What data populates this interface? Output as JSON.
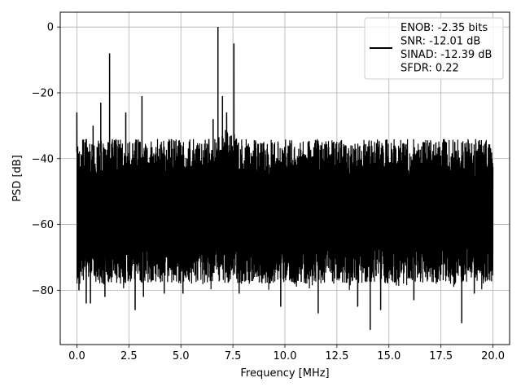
{
  "chart_data": {
    "type": "line",
    "xlabel": "Frequency [MHz]",
    "ylabel": "PSD [dB]",
    "xlim": [
      -0.8,
      20.8
    ],
    "ylim": [
      -96.5,
      4.5
    ],
    "xticks": [
      0.0,
      2.5,
      5.0,
      7.5,
      10.0,
      12.5,
      15.0,
      17.5,
      20.0
    ],
    "xtick_labels": [
      "0.0",
      "2.5",
      "5.0",
      "7.5",
      "10.0",
      "12.5",
      "15.0",
      "17.5",
      "20.0"
    ],
    "yticks": [
      0,
      -20,
      -40,
      -60,
      -80
    ],
    "ytick_labels": [
      "0",
      "−20",
      "−40",
      "−60",
      "−80"
    ],
    "grid": true,
    "line_color": "#000000",
    "legend": {
      "placement": "upper right",
      "lines": [
        "ENOB: -2.35 bits",
        "SNR: -12.01 dB",
        "SINAD: -12.39 dB",
        "SFDR: 0.22"
      ]
    },
    "series": [
      {
        "noise_floor": {
          "x_range": [
            0.0,
            20.0
          ],
          "top_db": -38,
          "bottom_db": -72,
          "mean_db": -52
        },
        "spikes": [
          {
            "x": 0.0,
            "y": -26
          },
          {
            "x": 0.78,
            "y": -30
          },
          {
            "x": 1.15,
            "y": -23
          },
          {
            "x": 1.57,
            "y": -8
          },
          {
            "x": 2.35,
            "y": -26
          },
          {
            "x": 3.13,
            "y": -21
          },
          {
            "x": 6.78,
            "y": 0
          },
          {
            "x": 7.0,
            "y": -21
          },
          {
            "x": 7.55,
            "y": -5
          },
          {
            "x": 7.2,
            "y": -26
          },
          {
            "x": 6.55,
            "y": -28
          }
        ],
        "dips": [
          {
            "x": 0.1,
            "y": -80
          },
          {
            "x": 0.45,
            "y": -84
          },
          {
            "x": 0.65,
            "y": -84
          },
          {
            "x": 1.35,
            "y": -82
          },
          {
            "x": 2.8,
            "y": -86
          },
          {
            "x": 3.2,
            "y": -82
          },
          {
            "x": 4.2,
            "y": -81
          },
          {
            "x": 5.1,
            "y": -81
          },
          {
            "x": 7.8,
            "y": -81
          },
          {
            "x": 9.8,
            "y": -85
          },
          {
            "x": 11.6,
            "y": -87
          },
          {
            "x": 13.5,
            "y": -85
          },
          {
            "x": 14.1,
            "y": -92
          },
          {
            "x": 14.6,
            "y": -86
          },
          {
            "x": 16.2,
            "y": -83
          },
          {
            "x": 18.5,
            "y": -90
          },
          {
            "x": 19.1,
            "y": -81
          }
        ]
      }
    ]
  }
}
